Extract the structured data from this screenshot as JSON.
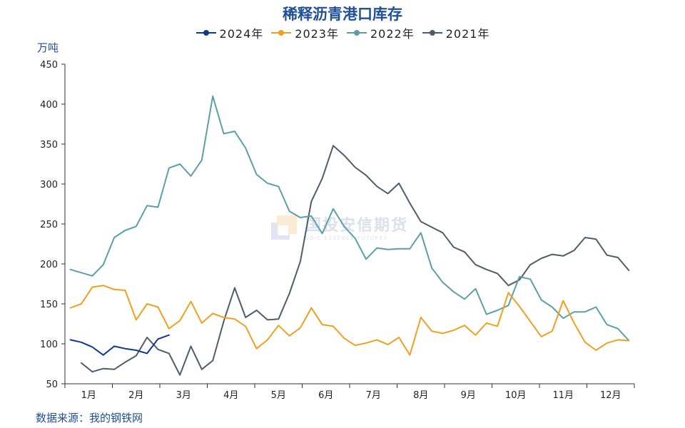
{
  "chart_data": {
    "type": "line",
    "title": "稀释沥青港口库存",
    "ylabel": "万吨",
    "ylim": [
      50,
      450
    ],
    "yticks": [
      50,
      100,
      150,
      200,
      250,
      300,
      350,
      400,
      450
    ],
    "months": [
      "1月",
      "2月",
      "3月",
      "4月",
      "5月",
      "6月",
      "7月",
      "8月",
      "9月",
      "10月",
      "11月",
      "12月"
    ],
    "x_unit": "week",
    "grid": false,
    "legend_position": "top-center",
    "series": [
      {
        "name": "2024年",
        "color": "#0d3a8f",
        "start_week": 1,
        "values": [
          105,
          102,
          96,
          86,
          97,
          94,
          92,
          88,
          106,
          111
        ]
      },
      {
        "name": "2023年",
        "color": "#f0a020",
        "start_week": 1,
        "values": [
          145,
          150,
          171,
          173,
          168,
          167,
          130,
          150,
          146,
          119,
          129,
          153,
          126,
          138,
          133,
          131,
          122,
          94,
          105,
          123,
          110,
          120,
          145,
          124,
          122,
          107,
          98,
          101,
          105,
          99,
          108,
          86,
          133,
          116,
          113,
          117,
          123,
          111,
          126,
          122,
          164,
          147,
          128,
          109,
          116,
          154,
          126,
          102,
          92,
          101,
          105,
          104
        ]
      },
      {
        "name": "2022年",
        "color": "#5b9fa8",
        "start_week": 1,
        "values": [
          193,
          189,
          185,
          199,
          233,
          242,
          247,
          273,
          271,
          320,
          325,
          310,
          330,
          410,
          363,
          366,
          345,
          312,
          301,
          297,
          266,
          258,
          260,
          238,
          269,
          247,
          232,
          206,
          220,
          218,
          219,
          219,
          239,
          195,
          177,
          165,
          156,
          169,
          137,
          142,
          148,
          184,
          181,
          155,
          146,
          132,
          140,
          140,
          146,
          124,
          119,
          104
        ]
      },
      {
        "name": "2021年",
        "color": "#4e5d6c",
        "start_week": 2,
        "values": [
          76,
          65,
          69,
          68,
          77,
          85,
          108,
          93,
          88,
          61,
          97,
          68,
          79,
          128,
          170,
          133,
          142,
          130,
          131,
          163,
          203,
          278,
          307,
          348,
          336,
          321,
          311,
          297,
          288,
          301,
          276,
          253,
          246,
          239,
          221,
          215,
          199,
          193,
          188,
          173,
          180,
          199,
          207,
          212,
          210,
          217,
          233,
          231,
          211,
          208,
          192
        ]
      }
    ]
  },
  "source": "数据来源：我的钢铁网",
  "watermark": {
    "cn": "国投安信期货",
    "en": "SDIC ESSENCE FUTURES"
  }
}
